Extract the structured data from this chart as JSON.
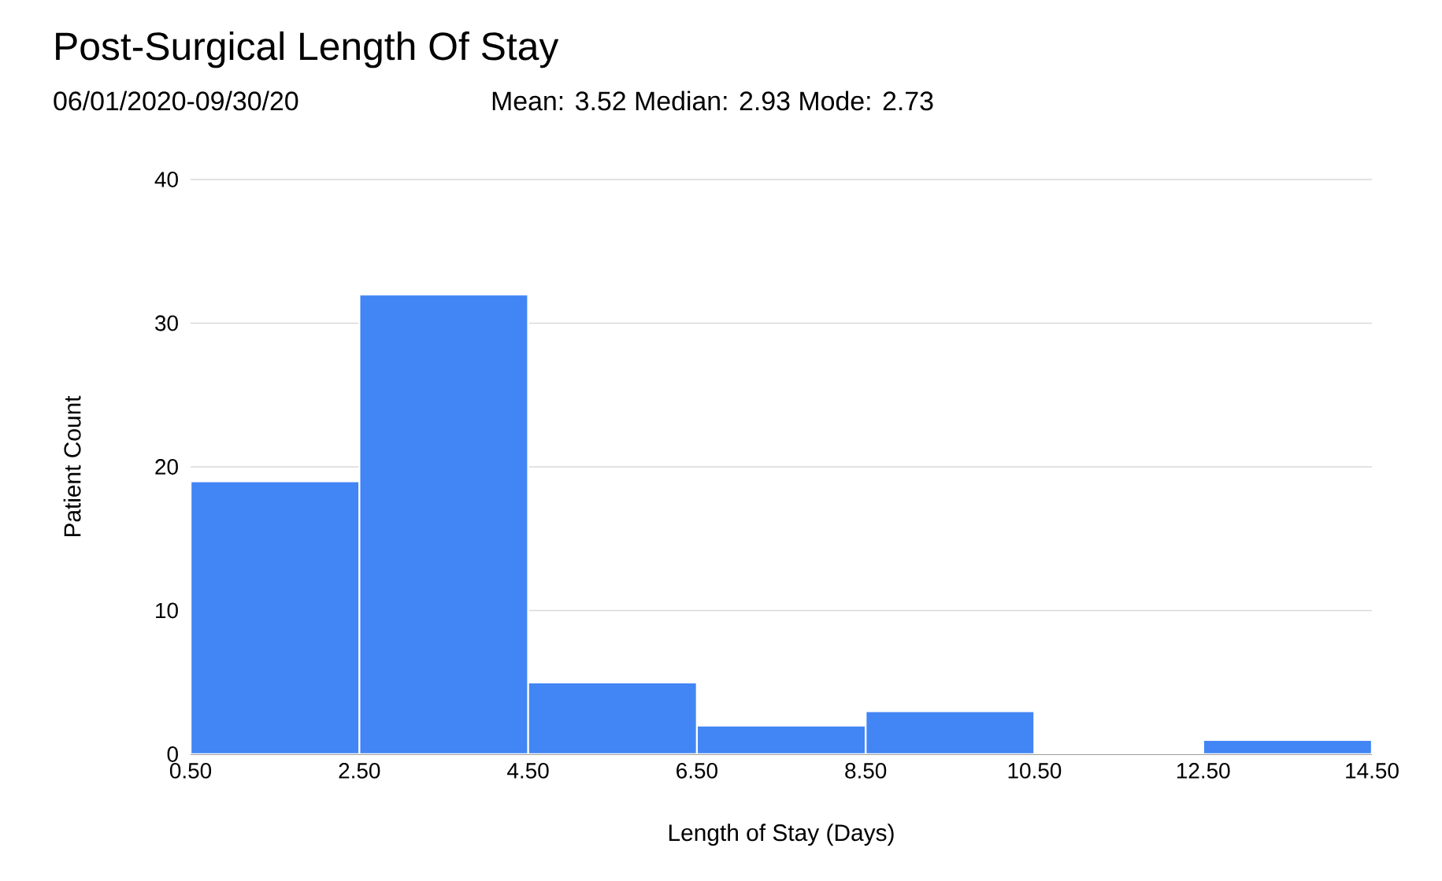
{
  "chart_data": {
    "type": "histogram",
    "title": "Post-Surgical Length Of Stay",
    "subtitle": "06/01/2020-09/30/20",
    "annotations": [
      "Mean: 3.52   Median: 2.93   Mode: 2.73"
    ],
    "xlabel": "Length of Stay (Days)",
    "ylabel": "Patient Count",
    "bins": [
      0.5,
      2.5,
      4.5,
      6.5,
      8.5,
      10.5,
      12.5,
      14.5
    ],
    "values": [
      19,
      32,
      5,
      2,
      3,
      0,
      1
    ],
    "color": "#4285f4",
    "xlim": [
      0.5,
      14.5
    ],
    "ylim": [
      0,
      40
    ],
    "xticks": [
      {
        "value": 0.5,
        "label": "0.50"
      },
      {
        "value": 2.5,
        "label": "2.50"
      },
      {
        "value": 4.5,
        "label": "4.50"
      },
      {
        "value": 6.5,
        "label": "6.50"
      },
      {
        "value": 8.5,
        "label": "8.50"
      },
      {
        "value": 10.5,
        "label": "10.50"
      },
      {
        "value": 12.5,
        "label": "12.50"
      },
      {
        "value": 14.5,
        "label": "14.50"
      }
    ],
    "yticks": [
      0,
      10,
      20,
      30,
      40
    ],
    "grid": "y"
  }
}
